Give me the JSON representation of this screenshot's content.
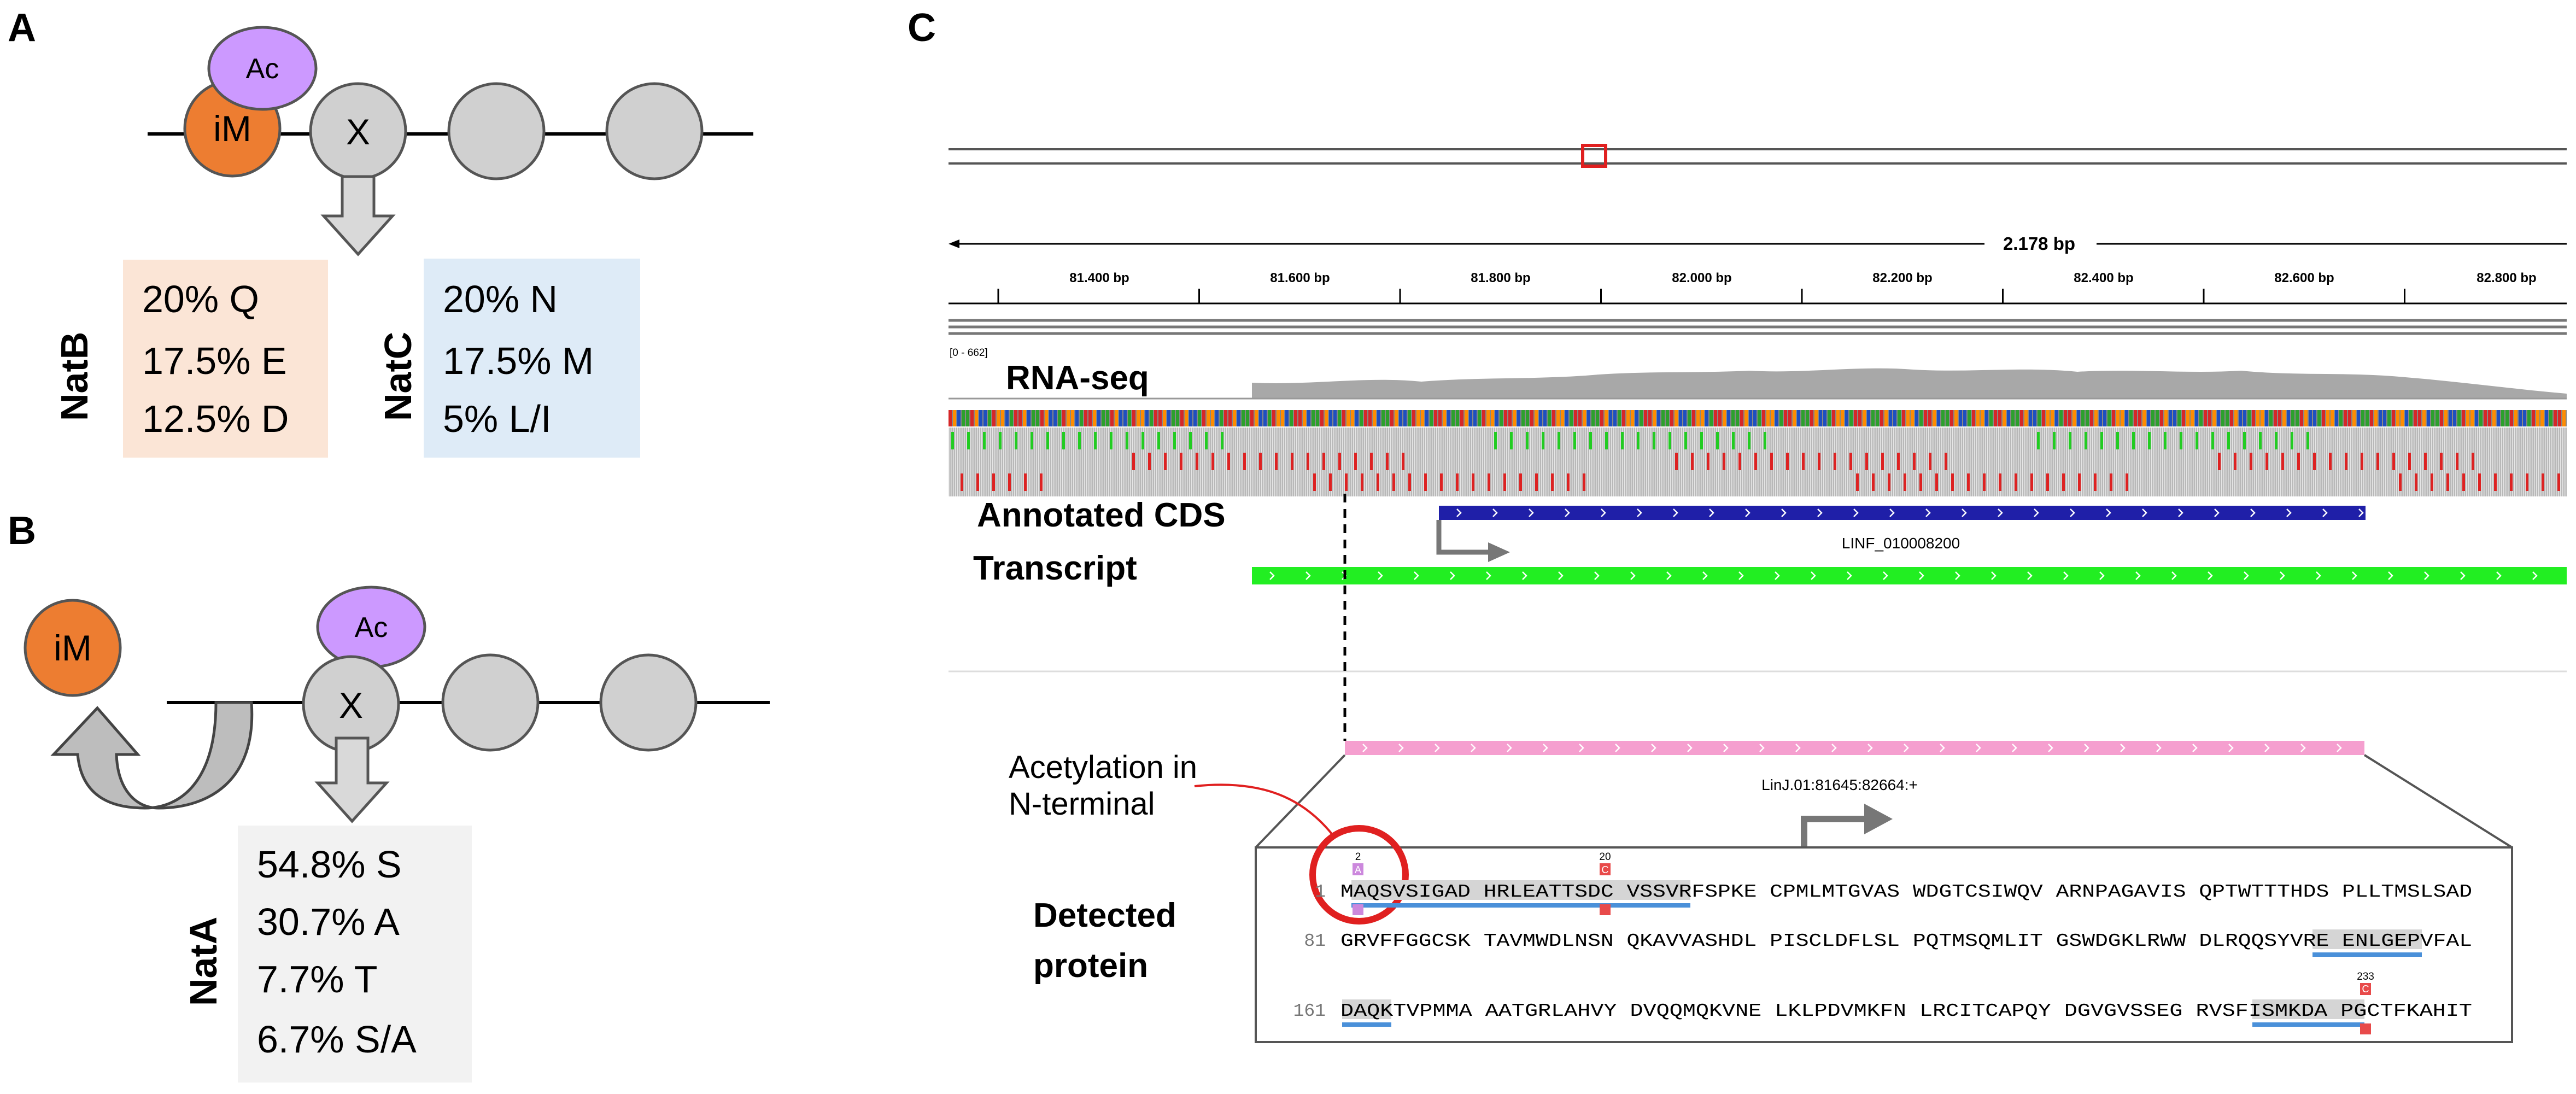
{
  "panels": {
    "a": {
      "letter": "A",
      "ac": "Ac",
      "im": "iM",
      "x": "X",
      "natb": {
        "label": "NatB",
        "lines": [
          "20% Q",
          "17.5% E",
          "12.5% D"
        ]
      },
      "natc": {
        "label": "NatC",
        "lines": [
          "20% N",
          "17.5% M",
          "5% L/I"
        ]
      }
    },
    "b": {
      "letter": "B",
      "im": "iM",
      "ac": "Ac",
      "x": "X",
      "nata": {
        "label": "NatA",
        "lines": [
          "54.8% S",
          "30.7% A",
          "7.7% T",
          "6.7% S/A"
        ]
      }
    },
    "c": {
      "letter": "C",
      "ruler": {
        "span": "2.178 bp",
        "range_label": "[0 - 662]",
        "ticks": [
          "81.400 bp",
          "81.600 bp",
          "81.800 bp",
          "82.000 bp",
          "82.200 bp",
          "82.400 bp",
          "82.600 bp",
          "82.800 bp"
        ]
      },
      "tracks": {
        "rnaseq": "RNA-seq",
        "annotated_cds": "Annotated CDS",
        "transcript": "Transcript",
        "gene_id": "LINF_010008200",
        "orf_id": "LinJ.01:81645:82664:+"
      },
      "acetylation_note": [
        "Acetylation in",
        "N-terminal"
      ],
      "detected_protein": [
        "Detected",
        "protein"
      ],
      "sequence": {
        "rows": [
          {
            "num": "1",
            "text": "MAQSVSIGAD HRLEATTSDC VSSVRFSPKE CPMLMTGVAS WDGTCSIWQV ARNPAGAVIS QPTWTTTHDS PLLTMSLSAD"
          },
          {
            "num": "81",
            "text": "GRVFFGGCSK TAVMWDLNSN QKAVVASHDL PISCLDFLSL PQTMSQMLIT GSWDGKLRWW DLRQQSYVRE ENLGEPVFAL"
          },
          {
            "num": "161",
            "text": "DAQKTVPMMA AATGRLAHVY DVQQMQKVNE LKLPDVMKFN LRCITCAPQY DGVGVSSEG RVSFISMKDA PGCTFKAHIT"
          }
        ],
        "site_labels": [
          "2",
          "20",
          "233"
        ],
        "mod_letters": [
          "A",
          "C",
          "C"
        ]
      }
    }
  },
  "colors": {
    "im_orange": "#ED7D31",
    "ac_purple": "#CC99FF",
    "residue_gray": "#D0D0D0",
    "natb_bg": "#FBE5D6",
    "natc_bg": "#DEEBF7",
    "nata_bg": "#F2F2F2",
    "cds_blue": "#1F1FA8",
    "transcript_green": "#22EE22",
    "orf_pink": "#F59FCF",
    "circle_red": "#E02020",
    "peptide_blue": "#4A90D9"
  }
}
